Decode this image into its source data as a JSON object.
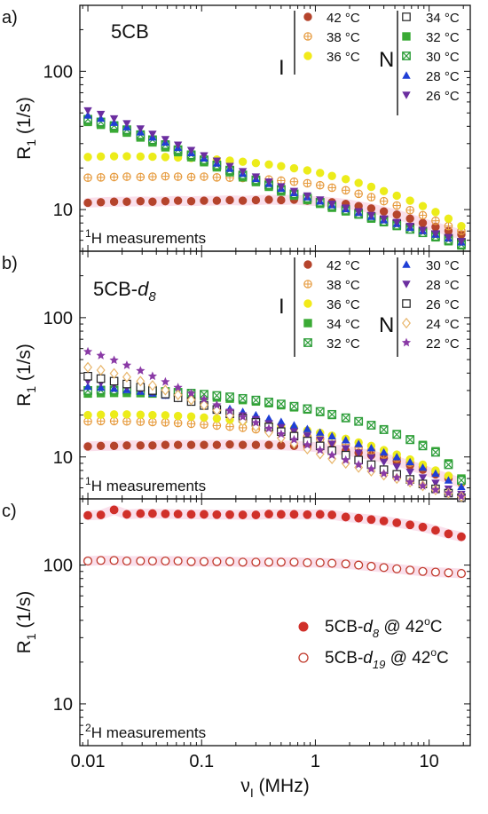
{
  "x_axis": {
    "label_main": "ν",
    "label_sub": "I",
    "label_unit": "(MHz)",
    "scale": "log",
    "xlim": [
      0.0085,
      23
    ],
    "ticks": [
      0.01,
      0.1,
      1,
      10
    ],
    "tick_labels": [
      "0.01",
      "0.1",
      "1",
      "10"
    ]
  },
  "y_axis": {
    "label_main": "R",
    "label_sub": "1",
    "label_unit": "(1/s)",
    "scale": "log",
    "ticks": [
      10,
      100
    ],
    "tick_labels": [
      "10",
      "100"
    ]
  },
  "panels": [
    {
      "tag": "a)",
      "title": "5CB",
      "title_sub": "",
      "footer_main": "H measurements",
      "footer_sup": "1",
      "phase_labels": [
        "I",
        "N"
      ],
      "ylim": [
        5,
        300
      ]
    },
    {
      "tag": "b)",
      "title": "5CB-",
      "title_italic": "d",
      "title_sub": "8",
      "footer_main": "H measurements",
      "footer_sup": "1",
      "phase_labels": [
        "I",
        "N"
      ],
      "ylim": [
        5,
        300
      ]
    },
    {
      "tag": "c)",
      "footer_main": "H measurements",
      "footer_sup": "2",
      "ylim": [
        5,
        300
      ]
    }
  ],
  "colors": {
    "c42": "#c0392b",
    "c38": "#e69a3c",
    "c36": "#f2ea1a",
    "c34_solid": "#3aaa35",
    "c30_blue": "#1f3fd6",
    "c26_purple": "#6b2ea0",
    "c24_tan": "#e8b56a",
    "c22_star": "#8a3aa6",
    "c32_green": "#2e9e3a",
    "c30_green": "#2e9e3a",
    "c34_open": "#222222",
    "c26_open": "#222222"
  },
  "legends": {
    "a_I": [
      {
        "label": "42 °C",
        "marker": "dot",
        "color": "#b5442c"
      },
      {
        "label": "38 °C",
        "marker": "circle-cross",
        "color": "#e69a3c"
      },
      {
        "label": "36 °C",
        "marker": "dot",
        "color": "#f2ea1a"
      }
    ],
    "a_N": [
      {
        "label": "34 °C",
        "marker": "square-open",
        "color": "#222222"
      },
      {
        "label": "32 °C",
        "marker": "square",
        "color": "#3aaa35"
      },
      {
        "label": "30 °C",
        "marker": "square-x",
        "color": "#2e9e3a"
      },
      {
        "label": "28 °C",
        "marker": "tri-up",
        "color": "#1f3fd6"
      },
      {
        "label": "26 °C",
        "marker": "tri-down",
        "color": "#6b2ea0"
      }
    ],
    "b_I": [
      {
        "label": "42 °C",
        "marker": "dot",
        "color": "#b5442c"
      },
      {
        "label": "38 °C",
        "marker": "circle-cross",
        "color": "#e69a3c"
      },
      {
        "label": "36 °C",
        "marker": "dot",
        "color": "#f2ea1a"
      },
      {
        "label": "34 °C",
        "marker": "square",
        "color": "#3aaa35"
      },
      {
        "label": "32 °C",
        "marker": "square-x",
        "color": "#2e9e3a"
      }
    ],
    "b_N": [
      {
        "label": "30 °C",
        "marker": "tri-up",
        "color": "#1f3fd6"
      },
      {
        "label": "28 °C",
        "marker": "tri-down",
        "color": "#6b2ea0"
      },
      {
        "label": "26 °C",
        "marker": "square-open",
        "color": "#222222"
      },
      {
        "label": "24 °C",
        "marker": "diamond-open",
        "color": "#e8b56a"
      },
      {
        "label": "22 °C",
        "marker": "star",
        "color": "#8a3aa6"
      }
    ],
    "c": [
      {
        "label_main": "5CB-",
        "label_italic": "d",
        "label_sub": "8",
        "label_tail": "  @ 42",
        "label_sup": "o",
        "label_end": "C",
        "marker": "dot",
        "color": "#d0302a"
      },
      {
        "label_main": "5CB-",
        "label_italic": "d",
        "label_sub": "19",
        "label_tail": " @ 42",
        "label_sup": "o",
        "label_end": "C",
        "marker": "circle-open",
        "color": "#c0392b"
      }
    ]
  },
  "chart_data": [
    {
      "type": "scatter",
      "panel": "a)",
      "title": "5CB",
      "xlabel": "ν_I (MHz)",
      "ylabel": "R_1 (1/s)",
      "xscale": "log",
      "yscale": "log",
      "x": [
        0.01,
        0.013,
        0.017,
        0.022,
        0.029,
        0.037,
        0.048,
        0.062,
        0.081,
        0.105,
        0.136,
        0.177,
        0.23,
        0.3,
        0.39,
        0.5,
        0.65,
        0.85,
        1.1,
        1.4,
        1.85,
        2.4,
        3.1,
        4.0,
        5.2,
        6.8,
        8.8,
        11.4,
        14.8,
        19.2
      ],
      "series": [
        {
          "name": "42 °C",
          "values": [
            11.2,
            11.3,
            11.4,
            11.4,
            11.5,
            11.4,
            11.5,
            11.6,
            11.5,
            11.6,
            11.6,
            11.7,
            11.6,
            11.7,
            11.8,
            11.7,
            11.8,
            11.6,
            11.5,
            11.3,
            11.0,
            10.6,
            10.2,
            9.7,
            9.2,
            8.6,
            8.0,
            7.5,
            7.0,
            6.6
          ]
        },
        {
          "name": "38 °C",
          "values": [
            17.0,
            17.1,
            17.2,
            17.3,
            17.2,
            17.3,
            17.4,
            17.3,
            17.2,
            17.3,
            17.1,
            17.0,
            16.9,
            16.7,
            16.5,
            16.2,
            15.9,
            15.5,
            15.0,
            14.4,
            13.8,
            13.0,
            12.3,
            11.5,
            10.7,
            9.9,
            9.1,
            8.3,
            7.6,
            7.0
          ]
        },
        {
          "name": "36 °C",
          "values": [
            24.0,
            24.2,
            24.3,
            24.3,
            24.2,
            24.1,
            24.0,
            23.8,
            23.6,
            23.3,
            23.0,
            22.6,
            22.2,
            21.7,
            21.2,
            20.6,
            19.9,
            19.2,
            18.4,
            17.5,
            16.6,
            15.6,
            14.6,
            13.6,
            12.6,
            11.6,
            10.6,
            9.6,
            8.6,
            7.6
          ]
        },
        {
          "name": "34 °C",
          "values": [
            44.0,
            42.0,
            39.5,
            37.0,
            34.0,
            31.5,
            29.0,
            26.8,
            24.6,
            22.6,
            20.8,
            19.1,
            17.6,
            16.2,
            15.0,
            13.9,
            12.9,
            12.0,
            11.3,
            10.6,
            10.0,
            9.4,
            8.9,
            8.4,
            7.9,
            7.4,
            7.0,
            6.6,
            6.2,
            5.8
          ]
        },
        {
          "name": "32 °C",
          "values": [
            43.0,
            41.0,
            38.5,
            36.0,
            33.2,
            30.6,
            28.2,
            26.0,
            23.9,
            22.0,
            20.2,
            18.6,
            17.1,
            15.8,
            14.6,
            13.5,
            12.6,
            11.7,
            11.0,
            10.3,
            9.7,
            9.2,
            8.6,
            8.1,
            7.6,
            7.2,
            6.8,
            6.3,
            5.9,
            5.5
          ]
        },
        {
          "name": "30 °C",
          "values": [
            45.0,
            43.0,
            40.5,
            37.8,
            34.8,
            32.0,
            29.5,
            27.1,
            24.9,
            22.9,
            21.0,
            19.3,
            17.8,
            16.4,
            15.1,
            14.0,
            13.0,
            12.1,
            11.3,
            10.6,
            9.9,
            9.3,
            8.8,
            8.2,
            7.7,
            7.2,
            6.8,
            6.4,
            6.0,
            5.6
          ]
        },
        {
          "name": "28 °C",
          "values": [
            48.0,
            45.5,
            42.5,
            39.5,
            36.3,
            33.3,
            30.6,
            28.0,
            25.7,
            23.5,
            21.6,
            19.8,
            18.2,
            16.7,
            15.4,
            14.2,
            13.2,
            12.3,
            11.5,
            10.8,
            10.1,
            9.5,
            8.9,
            8.4,
            7.9,
            7.4,
            7.0,
            6.6,
            6.2,
            5.8
          ]
        },
        {
          "name": "26 °C",
          "values": [
            52.0,
            49.0,
            45.5,
            42.0,
            38.5,
            35.2,
            32.2,
            29.4,
            26.9,
            24.6,
            22.5,
            20.6,
            18.9,
            17.3,
            15.9,
            14.7,
            13.6,
            12.6,
            11.8,
            11.0,
            10.3,
            9.7,
            9.1,
            8.6,
            8.1,
            7.6,
            7.1,
            6.7,
            6.3,
            5.9
          ]
        }
      ]
    },
    {
      "type": "scatter",
      "panel": "b)",
      "title": "5CB-d8",
      "xlabel": "ν_I (MHz)",
      "ylabel": "R_1 (1/s)",
      "xscale": "log",
      "yscale": "log",
      "x": [
        0.01,
        0.013,
        0.017,
        0.022,
        0.029,
        0.037,
        0.048,
        0.062,
        0.081,
        0.105,
        0.136,
        0.177,
        0.23,
        0.3,
        0.39,
        0.5,
        0.65,
        0.85,
        1.1,
        1.4,
        1.85,
        2.4,
        3.1,
        4.0,
        5.2,
        6.8,
        8.8,
        11.4,
        14.8,
        19.2
      ],
      "series": [
        {
          "name": "42 °C",
          "values": [
            11.9,
            12.0,
            12.0,
            12.1,
            12.1,
            12.1,
            12.2,
            12.2,
            12.2,
            12.2,
            12.2,
            12.3,
            12.2,
            12.2,
            12.2,
            12.1,
            12.0,
            11.9,
            11.7,
            11.4,
            11.1,
            10.7,
            10.3,
            9.8,
            9.3,
            8.7,
            8.1,
            7.5,
            7.0,
            6.5
          ]
        },
        {
          "name": "38 °C",
          "values": [
            18.0,
            18.1,
            18.1,
            18.0,
            17.9,
            17.8,
            17.7,
            17.5,
            17.3,
            17.1,
            16.8,
            16.5,
            16.2,
            15.8,
            15.4,
            15.0,
            14.5,
            14.0,
            13.5,
            12.9,
            12.3,
            11.7,
            11.1,
            10.4,
            9.8,
            9.1,
            8.5,
            7.9,
            7.3,
            6.7
          ]
        },
        {
          "name": "36 °C",
          "values": [
            20.0,
            20.1,
            20.2,
            20.2,
            20.1,
            20.0,
            19.9,
            19.7,
            19.5,
            19.2,
            18.9,
            18.5,
            18.1,
            17.7,
            17.2,
            16.7,
            16.1,
            15.5,
            14.9,
            14.2,
            13.5,
            12.7,
            12.0,
            11.2,
            10.4,
            9.6,
            8.8,
            8.0,
            7.3,
            6.6
          ]
        },
        {
          "name": "34 °C",
          "values": [
            28.5,
            28.7,
            28.8,
            28.8,
            28.7,
            28.5,
            28.3,
            28.0,
            27.6,
            27.2,
            26.7,
            26.2,
            25.6,
            25.0,
            24.3,
            23.5,
            22.7,
            21.9,
            21.0,
            20.0,
            19.0,
            18.0,
            16.9,
            15.8,
            14.6,
            13.4,
            12.2,
            11.0,
            9.0,
            7.0
          ]
        },
        {
          "name": "32 °C",
          "values": [
            30.0,
            30.2,
            30.2,
            30.2,
            30.0,
            29.8,
            29.5,
            29.1,
            28.7,
            28.2,
            27.6,
            27.0,
            26.3,
            25.6,
            24.8,
            24.0,
            23.1,
            22.2,
            21.2,
            20.2,
            19.1,
            18.0,
            16.9,
            15.7,
            14.5,
            13.3,
            12.0,
            10.8,
            8.8,
            6.8
          ]
        },
        {
          "name": "30 °C",
          "values": [
            32.0,
            31.5,
            31.0,
            30.3,
            29.5,
            28.6,
            27.6,
            26.6,
            25.5,
            24.4,
            23.3,
            22.2,
            21.1,
            20.0,
            18.9,
            17.9,
            16.9,
            15.9,
            15.0,
            14.1,
            13.2,
            12.4,
            11.6,
            10.8,
            10.0,
            9.2,
            8.4,
            7.6,
            6.8,
            6.1
          ]
        },
        {
          "name": "28 °C",
          "values": [
            35.0,
            34.0,
            33.0,
            31.8,
            30.5,
            29.2,
            27.8,
            26.4,
            25.0,
            23.6,
            22.3,
            21.0,
            19.8,
            18.6,
            17.4,
            16.3,
            15.2,
            14.2,
            13.3,
            12.4,
            11.5,
            10.7,
            9.9,
            9.2,
            8.5,
            7.8,
            7.1,
            6.5,
            5.9,
            5.4
          ]
        },
        {
          "name": "26 °C",
          "values": [
            38.0,
            36.5,
            35.0,
            33.4,
            31.7,
            30.0,
            28.3,
            26.6,
            25.0,
            23.4,
            21.9,
            20.4,
            19.0,
            17.7,
            16.4,
            15.2,
            14.1,
            13.0,
            12.0,
            11.1,
            10.3,
            9.5,
            8.8,
            8.1,
            7.5,
            6.9,
            6.4,
            5.9,
            5.5,
            5.1
          ]
        },
        {
          "name": "24 °C",
          "values": [
            44.0,
            42.0,
            39.8,
            37.5,
            35.0,
            32.6,
            30.2,
            27.9,
            25.7,
            23.6,
            21.6,
            19.8,
            18.1,
            16.5,
            15.0,
            13.7,
            12.5,
            11.4,
            10.5,
            9.7,
            9.0,
            8.4,
            7.9,
            7.4,
            7.0,
            6.6,
            6.2,
            5.8,
            5.5,
            5.2
          ]
        },
        {
          "name": "22 °C",
          "values": [
            57.0,
            53.5,
            49.5,
            45.5,
            41.6,
            38.0,
            34.6,
            31.5,
            28.6,
            26.0,
            23.6,
            21.4,
            19.4,
            17.6,
            16.0,
            14.6,
            13.3,
            12.2,
            11.2,
            10.3,
            9.5,
            8.8,
            8.2,
            7.6,
            7.1,
            6.6,
            6.2,
            5.8,
            5.5,
            5.2
          ]
        }
      ]
    },
    {
      "type": "scatter",
      "panel": "c)",
      "xlabel": "ν_I (MHz)",
      "ylabel": "R_1 (1/s)",
      "xscale": "log",
      "yscale": "log",
      "x": [
        0.01,
        0.013,
        0.017,
        0.022,
        0.029,
        0.037,
        0.048,
        0.062,
        0.081,
        0.105,
        0.136,
        0.177,
        0.23,
        0.3,
        0.39,
        0.5,
        0.65,
        0.85,
        1.1,
        1.4,
        1.85,
        2.4,
        3.1,
        4.0,
        5.2,
        6.8,
        8.8,
        11.4,
        14.8,
        19.2
      ],
      "series": [
        {
          "name": "5CB-d8 @ 42oC",
          "values": [
            228,
            230,
            250,
            232,
            235,
            235,
            234,
            233,
            232,
            232,
            231,
            231,
            230,
            230,
            233,
            232,
            232,
            231,
            232,
            230,
            222,
            218,
            213,
            208,
            202,
            195,
            188,
            178,
            168,
            160
          ]
        },
        {
          "name": "5CB-d19 @ 42oC",
          "values": [
            107,
            108,
            108,
            107,
            107,
            107,
            107,
            107,
            106,
            106,
            106,
            106,
            105,
            105,
            105,
            105,
            105,
            104,
            104,
            103,
            102,
            100,
            98,
            96,
            94,
            92,
            90,
            89,
            88,
            87
          ]
        }
      ]
    }
  ]
}
